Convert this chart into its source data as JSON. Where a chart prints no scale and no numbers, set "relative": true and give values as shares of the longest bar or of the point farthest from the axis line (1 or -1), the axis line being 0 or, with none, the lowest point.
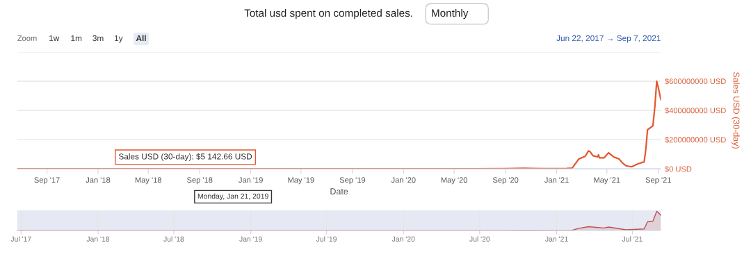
{
  "chart_data": [
    {
      "type": "line",
      "title": "Total usd spent on completed sales.",
      "xlabel": "Date",
      "y2label": "Sales USD (30-day)",
      "annotations": [
        "Monthly",
        "Zoom",
        "1w",
        "1m",
        "3m",
        "1y",
        "All",
        "Jun 22, 2017 → Sep 7, 2021",
        "Sales USD (30-day): $5 142.66 USD",
        "Monday, Jan 21, 2019"
      ],
      "series": [
        {
          "color": "#e4572e",
          "axis": "y2",
          "x": [
            "2017-06-22",
            "2018-06-01",
            "2019-09-01",
            "2020-06-01",
            "2020-09-01",
            "2020-10-15",
            "2020-12-01",
            "2021-01-01",
            "2021-01-25",
            "2021-02-07",
            "2021-02-23",
            "2021-03-10",
            "2021-03-18",
            "2021-03-22",
            "2021-03-29",
            "2021-04-09",
            "2021-04-11",
            "2021-04-13",
            "2021-04-24",
            "2021-05-05",
            "2021-05-17",
            "2021-05-30",
            "2021-06-07",
            "2021-06-16",
            "2021-06-29",
            "2021-07-14",
            "2021-07-29",
            "2021-08-01",
            "2021-08-03",
            "2021-08-06",
            "2021-08-19",
            "2021-08-24",
            "2021-08-28",
            "2021-09-01",
            "2021-09-07"
          ],
          "values": [
            0,
            0,
            0,
            0,
            1000000,
            4000000,
            1000000,
            2000000,
            3000000,
            5000000,
            68000000,
            85000000,
            123000000,
            117000000,
            89000000,
            82000000,
            96000000,
            75000000,
            75000000,
            110000000,
            82000000,
            68000000,
            41000000,
            21000000,
            14000000,
            34000000,
            48000000,
            110000000,
            164000000,
            267000000,
            295000000,
            438000000,
            600000000,
            555000000,
            473000000
          ]
        }
      ],
      "xlim": [
        "2017-06-22",
        "2021-09-07"
      ],
      "xticks": [
        {
          "value": "2017-09-01",
          "label": "Sep '17"
        },
        {
          "value": "2018-01-01",
          "label": "Jan '18"
        },
        {
          "value": "2018-05-01",
          "label": "May '18"
        },
        {
          "value": "2018-09-01",
          "label": "Sep '18"
        },
        {
          "value": "2019-01-01",
          "label": "Jan '19"
        },
        {
          "value": "2019-05-01",
          "label": "May '19"
        },
        {
          "value": "2019-09-01",
          "label": "Sep '19"
        },
        {
          "value": "2020-01-01",
          "label": "Jan '20"
        },
        {
          "value": "2020-05-01",
          "label": "May '20"
        },
        {
          "value": "2020-09-01",
          "label": "Sep '20"
        },
        {
          "value": "2021-01-01",
          "label": "Jan '21"
        },
        {
          "value": "2021-05-01",
          "label": "May '21"
        },
        {
          "value": "2021-09-01",
          "label": "Sep '21"
        }
      ],
      "y2lim": [
        0,
        800000000
      ],
      "y2ticks": [
        {
          "value": 0,
          "label": "$0 USD"
        },
        {
          "value": 200000000,
          "label": "$200000000 USD"
        },
        {
          "value": 400000000,
          "label": "$400000000 USD"
        },
        {
          "value": 600000000,
          "label": "$600000000 USD"
        },
        {
          "value": 800000000,
          "label": null
        }
      ],
      "grid": "y",
      "legend": false
    },
    {
      "type": "area",
      "relative": true,
      "series": [
        {
          "color": "#c0504d",
          "x": [
            "2017-06-22",
            "2020-09-01",
            "2020-10-15",
            "2021-01-01",
            "2021-02-07",
            "2021-02-23",
            "2021-03-18",
            "2021-04-24",
            "2021-05-05",
            "2021-06-16",
            "2021-07-29",
            "2021-08-06",
            "2021-08-19",
            "2021-08-28",
            "2021-09-01",
            "2021-09-07"
          ],
          "values": [
            0,
            0.002,
            0.007,
            0.003,
            0.008,
            0.11,
            0.2,
            0.13,
            0.18,
            0.035,
            0.08,
            0.45,
            0.49,
            1,
            0.93,
            0.79
          ]
        }
      ],
      "xlim": [
        "2017-06-22",
        "2021-09-07"
      ],
      "xticks": [
        {
          "value": "2017-07-01",
          "label": "Jul '17"
        },
        {
          "value": "2018-01-01",
          "label": "Jan '18"
        },
        {
          "value": "2018-07-01",
          "label": "Jul '18"
        },
        {
          "value": "2019-01-01",
          "label": "Jan '19"
        },
        {
          "value": "2019-07-01",
          "label": "Jul '19"
        },
        {
          "value": "2020-01-01",
          "label": "Jan '20"
        },
        {
          "value": "2020-07-01",
          "label": "Jul '20"
        },
        {
          "value": "2021-01-01",
          "label": "Jan '21"
        },
        {
          "value": "2021-07-01",
          "label": "Jul '21"
        }
      ],
      "grid": "x",
      "tick_labels": "x"
    }
  ]
}
